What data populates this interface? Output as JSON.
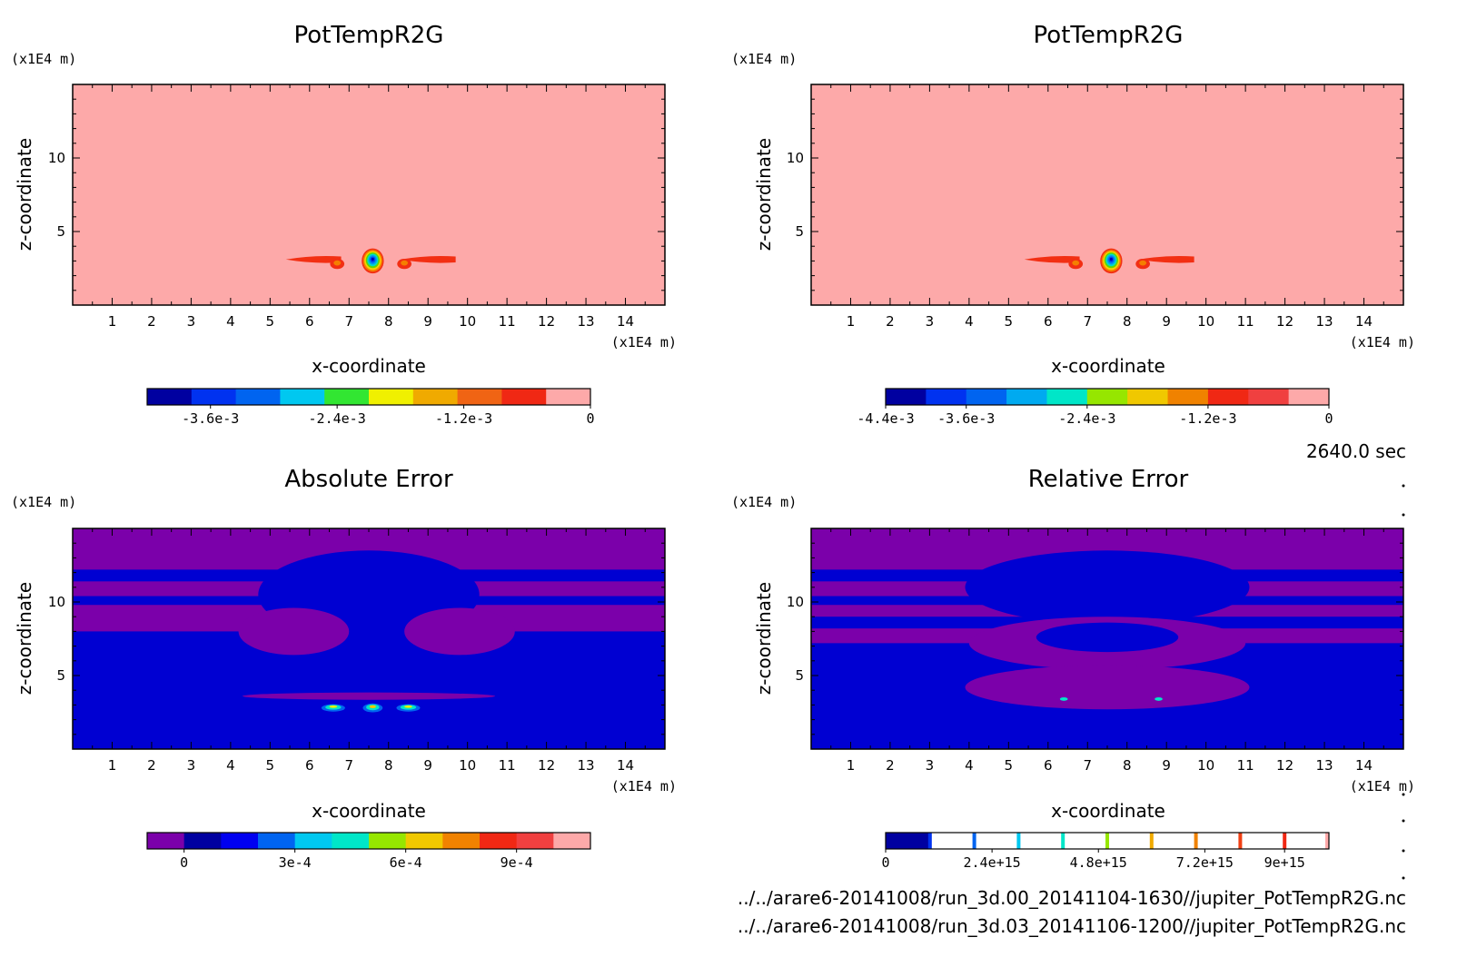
{
  "figure": {
    "time_label": "2640.0 sec",
    "files": [
      "../../arare6-20141008/run_3d.00_20141104-1630//jupiter_PotTempR2G.nc",
      "../../arare6-20141008/run_3d.03_20141106-1200//jupiter_PotTempR2G.nc"
    ]
  },
  "chart_data": [
    {
      "type": "heatmap",
      "title": "PotTempR2G",
      "xlabel": "x-coordinate",
      "ylabel": "z-coordinate",
      "x_unit": "(x1E4 m)",
      "y_unit": "(x1E4 m)",
      "xlim": [
        0,
        15
      ],
      "ylim": [
        0,
        15
      ],
      "x_ticks": [
        "1",
        "2",
        "3",
        "4",
        "5",
        "6",
        "7",
        "8",
        "9",
        "10",
        "11",
        "12",
        "13",
        "14"
      ],
      "y_ticks": [
        "5",
        "10"
      ],
      "background": "#fda9a9",
      "features": [
        {
          "kind": "layer",
          "x": [
            5.4,
            6.8
          ],
          "z": [
            2.9,
            3.3
          ],
          "color": "#f22f13"
        },
        {
          "kind": "layer",
          "x": [
            8.3,
            9.7
          ],
          "z": [
            2.9,
            3.3
          ],
          "color": "#f22f13"
        },
        {
          "kind": "blob",
          "x": 6.7,
          "z": 2.8,
          "rx": 0.18,
          "rz": 0.35,
          "colors": [
            "#f22f13",
            "#f57f00"
          ]
        },
        {
          "kind": "blob",
          "x": 8.4,
          "z": 2.8,
          "rx": 0.18,
          "rz": 0.35,
          "colors": [
            "#f22f13",
            "#f57f00"
          ]
        },
        {
          "kind": "core",
          "x": 7.6,
          "z": 3.0,
          "rx": 0.28,
          "rz": 0.85,
          "colors": [
            "#f22f13",
            "#f57f00",
            "#f8d100",
            "#61d600",
            "#00d9c8",
            "#0096f0",
            "#0050f0",
            "#0000b8"
          ]
        }
      ],
      "colorbar": {
        "colors": [
          "#0000a0",
          "#0032f0",
          "#0064f0",
          "#00c8f0",
          "#32e632",
          "#f0f000",
          "#f0aa00",
          "#f06414",
          "#f02814",
          "#fda9a9"
        ],
        "tick_labels": [
          "-3.6e-3",
          "-2.4e-3",
          "-1.2e-3",
          "0"
        ],
        "tick_values": [
          -0.0036,
          -0.0024,
          -0.0012,
          0
        ],
        "range": [
          -0.0042,
          0
        ]
      }
    },
    {
      "type": "heatmap",
      "title": "PotTempR2G",
      "xlabel": "x-coordinate",
      "ylabel": "z-coordinate",
      "x_unit": "(x1E4 m)",
      "y_unit": "(x1E4 m)",
      "xlim": [
        0,
        15
      ],
      "ylim": [
        0,
        15
      ],
      "x_ticks": [
        "1",
        "2",
        "3",
        "4",
        "5",
        "6",
        "7",
        "8",
        "9",
        "10",
        "11",
        "12",
        "13",
        "14"
      ],
      "y_ticks": [
        "5",
        "10"
      ],
      "background": "#fda9a9",
      "features": [
        {
          "kind": "layer",
          "x": [
            5.4,
            6.8
          ],
          "z": [
            2.9,
            3.3
          ],
          "color": "#f22f13"
        },
        {
          "kind": "layer",
          "x": [
            8.3,
            9.7
          ],
          "z": [
            2.9,
            3.3
          ],
          "color": "#f22f13"
        },
        {
          "kind": "blob",
          "x": 6.7,
          "z": 2.8,
          "rx": 0.18,
          "rz": 0.35,
          "colors": [
            "#f22f13",
            "#f57f00"
          ]
        },
        {
          "kind": "blob",
          "x": 8.4,
          "z": 2.8,
          "rx": 0.18,
          "rz": 0.35,
          "colors": [
            "#f22f13",
            "#f57f00"
          ]
        },
        {
          "kind": "core",
          "x": 7.6,
          "z": 3.0,
          "rx": 0.28,
          "rz": 0.85,
          "colors": [
            "#f22f13",
            "#f57f00",
            "#f8d100",
            "#61d600",
            "#00d9c8",
            "#0096f0",
            "#0050f0",
            "#0000b8"
          ]
        }
      ],
      "colorbar": {
        "colors": [
          "#0000a0",
          "#0032f0",
          "#0064f0",
          "#00aaf0",
          "#00e6c8",
          "#96e600",
          "#f0c800",
          "#f08200",
          "#f02814",
          "#f04040",
          "#fda9a9"
        ],
        "tick_labels": [
          "-4.4e-3",
          "-3.6e-3",
          "-2.4e-3",
          "-1.2e-3",
          "0"
        ],
        "tick_values": [
          -0.0044,
          -0.0036,
          -0.0024,
          -0.0012,
          0
        ],
        "range": [
          -0.0044,
          0
        ]
      }
    },
    {
      "type": "heatmap",
      "title": "Absolute Error",
      "xlabel": "x-coordinate",
      "ylabel": "z-coordinate",
      "x_unit": "(x1E4 m)",
      "y_unit": "(x1E4 m)",
      "xlim": [
        0,
        15
      ],
      "ylim": [
        0,
        15
      ],
      "x_ticks": [
        "1",
        "2",
        "3",
        "4",
        "5",
        "6",
        "7",
        "8",
        "9",
        "10",
        "11",
        "12",
        "13",
        "14"
      ],
      "y_ticks": [
        "5",
        "10"
      ],
      "background": "#0000d2",
      "bands": [
        {
          "z": [
            12.2,
            15.0
          ],
          "color": "#7b00aa"
        },
        {
          "z": [
            10.4,
            11.4
          ],
          "color": "#7b00aa"
        },
        {
          "z": [
            8.0,
            9.8
          ],
          "color": "#7b00aa"
        }
      ],
      "features": [
        {
          "kind": "region",
          "x": 7.5,
          "z": 10.5,
          "rx": 2.8,
          "rz": 3.0,
          "color": "#0000d2"
        },
        {
          "kind": "region",
          "x": 5.6,
          "z": 8.0,
          "rx": 1.4,
          "rz": 1.6,
          "color": "#7b00aa"
        },
        {
          "kind": "region",
          "x": 9.8,
          "z": 8.0,
          "rx": 1.4,
          "rz": 1.6,
          "color": "#7b00aa"
        },
        {
          "kind": "region",
          "x": 7.5,
          "z": 3.6,
          "rx": 3.2,
          "rz": 0.25,
          "color": "#7b00aa"
        },
        {
          "kind": "blob",
          "x": 6.6,
          "z": 2.8,
          "rx": 0.3,
          "rz": 0.25,
          "colors": [
            "#0064f0",
            "#00e6c8",
            "#f0f000"
          ]
        },
        {
          "kind": "blob",
          "x": 7.6,
          "z": 2.8,
          "rx": 0.25,
          "rz": 0.3,
          "colors": [
            "#0064f0",
            "#00e6c8",
            "#f0c800"
          ]
        },
        {
          "kind": "blob",
          "x": 8.5,
          "z": 2.8,
          "rx": 0.3,
          "rz": 0.25,
          "colors": [
            "#0064f0",
            "#00e6c8",
            "#f0f000"
          ]
        }
      ],
      "colorbar": {
        "colors": [
          "#7b00aa",
          "#0000a0",
          "#0000f0",
          "#0064f0",
          "#00c8f0",
          "#00e6c8",
          "#96e600",
          "#f0c800",
          "#f08200",
          "#f02814",
          "#f04040",
          "#fda9a9"
        ],
        "tick_labels": [
          "0",
          "3e-4",
          "6e-4",
          "9e-4"
        ],
        "tick_values": [
          0,
          0.0003,
          0.0006,
          0.0009
        ],
        "range": [
          -0.0001,
          0.0011
        ]
      }
    },
    {
      "type": "heatmap",
      "title": "Relative Error",
      "xlabel": "x-coordinate",
      "ylabel": "z-coordinate",
      "x_unit": "(x1E4 m)",
      "y_unit": "(x1E4 m)",
      "xlim": [
        0,
        15
      ],
      "ylim": [
        0,
        15
      ],
      "x_ticks": [
        "1",
        "2",
        "3",
        "4",
        "5",
        "6",
        "7",
        "8",
        "9",
        "10",
        "11",
        "12",
        "13",
        "14"
      ],
      "y_ticks": [
        "5",
        "10"
      ],
      "background": "#0000d2",
      "bands": [
        {
          "z": [
            12.2,
            15.0
          ],
          "color": "#7b00aa"
        },
        {
          "z": [
            10.4,
            11.4
          ],
          "color": "#7b00aa"
        },
        {
          "z": [
            9.0,
            9.8
          ],
          "color": "#7b00aa"
        },
        {
          "z": [
            7.2,
            8.2
          ],
          "color": "#7b00aa"
        }
      ],
      "features": [
        {
          "kind": "region",
          "x": 7.5,
          "z": 11.0,
          "rx": 3.6,
          "rz": 2.5,
          "color": "#0000d2"
        },
        {
          "kind": "region",
          "x": 7.5,
          "z": 7.2,
          "rx": 3.5,
          "rz": 1.8,
          "color": "#7b00aa"
        },
        {
          "kind": "region",
          "x": 7.5,
          "z": 7.6,
          "rx": 1.8,
          "rz": 1.0,
          "color": "#0000d2"
        },
        {
          "kind": "region",
          "x": 7.5,
          "z": 4.2,
          "rx": 3.6,
          "rz": 1.5,
          "color": "#7b00aa"
        },
        {
          "kind": "blob",
          "x": 6.4,
          "z": 3.4,
          "rx": 0.1,
          "rz": 0.12,
          "colors": [
            "#00e6c8"
          ]
        },
        {
          "kind": "blob",
          "x": 8.8,
          "z": 3.4,
          "rx": 0.1,
          "rz": 0.12,
          "colors": [
            "#00e6c8"
          ]
        }
      ],
      "colorbar": {
        "colors": [
          "#0000a0",
          "#ffffff",
          "#ffffff",
          "#ffffff",
          "#ffffff",
          "#ffffff",
          "#ffffff",
          "#ffffff",
          "#ffffff",
          "#ffffff"
        ],
        "separators": [
          "#0032f0",
          "#0064f0",
          "#00c8f0",
          "#00e6c8",
          "#96e600",
          "#f0aa00",
          "#f08200",
          "#f04014",
          "#f02814",
          "#fda9a9"
        ],
        "tick_labels": [
          "0",
          "2.4e+15",
          "4.8e+15",
          "7.2e+15",
          "9e+15"
        ],
        "tick_values": [
          0,
          2400000000000000.0,
          4800000000000000.0,
          7200000000000000.0,
          9000000000000000.0
        ],
        "range": [
          0,
          1e+16
        ]
      }
    }
  ]
}
